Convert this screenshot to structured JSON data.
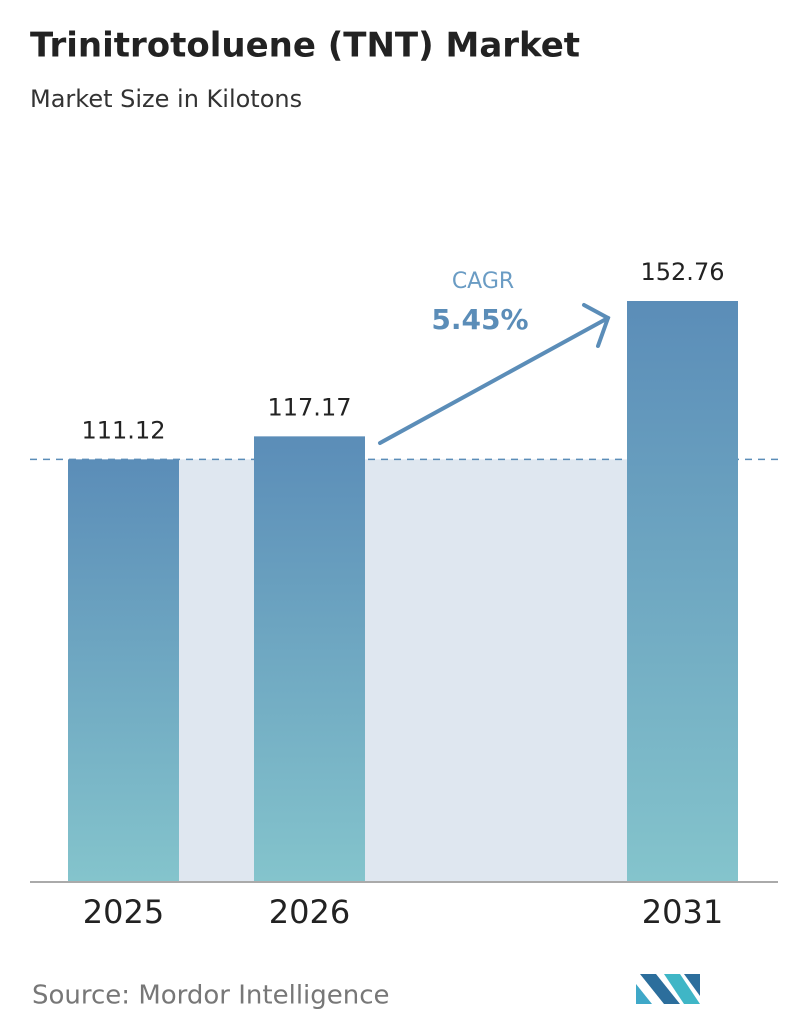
{
  "chart_data": {
    "type": "bar",
    "title": "Trinitrotoluene (TNT) Market",
    "subtitle": "Market Size in Kilotons",
    "categories": [
      "2025",
      "2026",
      "2031"
    ],
    "values": [
      111.12,
      117.17,
      152.76
    ],
    "color": [
      "#5b8db8",
      "#84c4cc"
    ],
    "annotation": {
      "label": "CAGR",
      "value": "5.45%"
    },
    "source": "Source:  Mordor Intelligence"
  }
}
